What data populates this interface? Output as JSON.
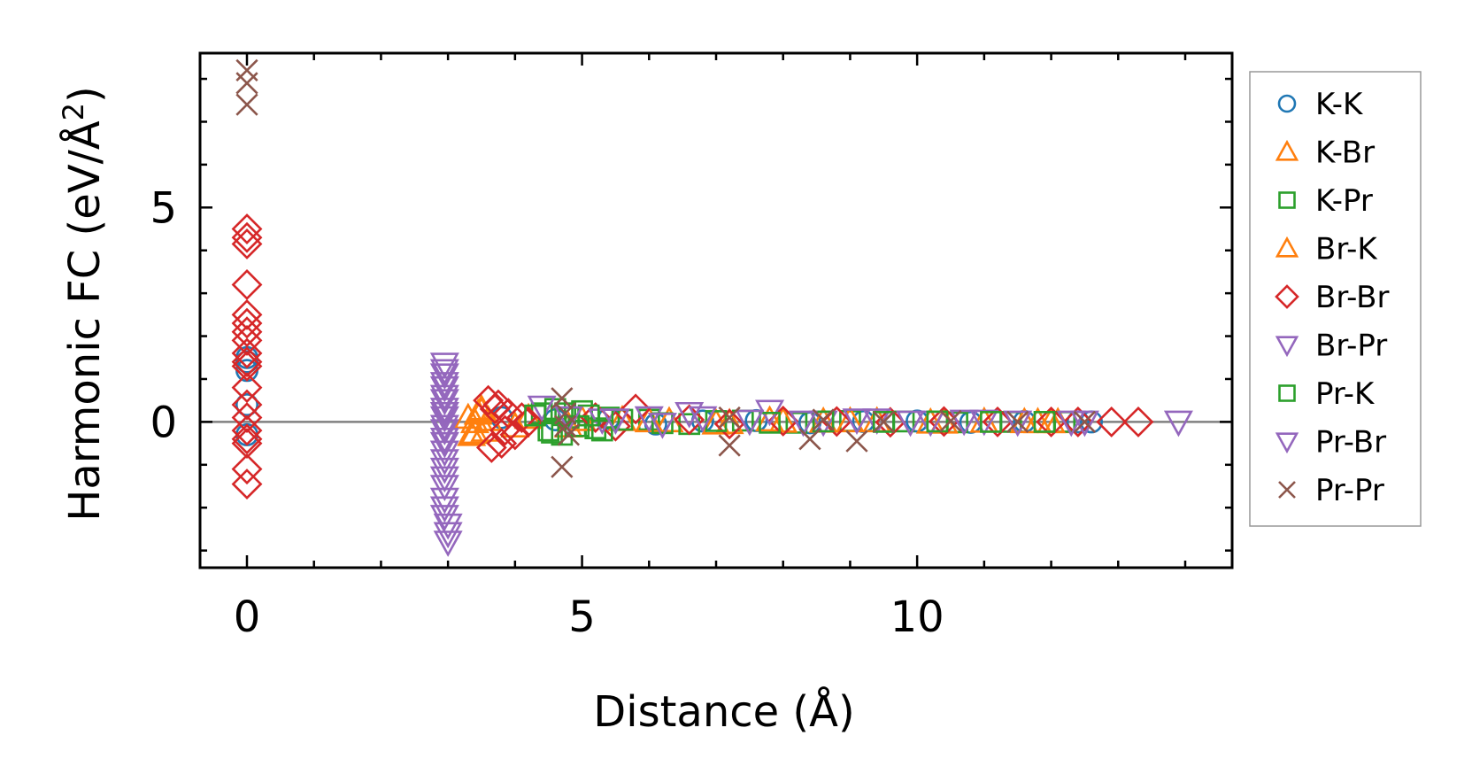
{
  "chart_data": {
    "type": "scatter",
    "xlabel": "Distance (Å)",
    "ylabel_main": "Harmonic FC (eV/Å",
    "ylabel_sup": "2",
    "ylabel_close": ")",
    "xlim": [
      -0.7,
      14.7
    ],
    "ylim": [
      -3.4,
      8.6
    ],
    "xticks": [
      0,
      5,
      10
    ],
    "xtick_labels": [
      "0",
      "5",
      "10"
    ],
    "yticks": [
      0,
      5
    ],
    "ytick_labels": [
      "0",
      "5"
    ],
    "reference_line_y": 0,
    "grid": false,
    "legend_position": "right-outside",
    "series": [
      {
        "name": "K-K",
        "marker": "circle",
        "color": "#1f77b4",
        "x": [
          0,
          0,
          0,
          0,
          0,
          3.8,
          4.6,
          5.4,
          6.1,
          6.8,
          7.6,
          8.4,
          9.2,
          10.0,
          10.8,
          11.6,
          12.4,
          12.6
        ],
        "y": [
          1.2,
          1.4,
          1.5,
          0.4,
          -0.3,
          0.1,
          0.05,
          0.08,
          -0.05,
          0.02,
          0.03,
          -0.02,
          0.01,
          0.02,
          -0.01,
          0.01,
          0.0,
          0.0
        ]
      },
      {
        "name": "K-Br",
        "marker": "triangle-up",
        "color": "#ff7f0e",
        "x": [
          3.35,
          3.4,
          3.45,
          3.5,
          3.55,
          4.2,
          4.8,
          5.6,
          6.3,
          7.0,
          7.8,
          8.6,
          9.4,
          10.2,
          11.0,
          11.8,
          12.1
        ],
        "y": [
          -0.3,
          0.0,
          0.2,
          0.3,
          -0.2,
          0.1,
          -0.1,
          0.05,
          0.02,
          -0.03,
          0.04,
          0.01,
          0.02,
          -0.01,
          0.01,
          0.0,
          0.0
        ]
      },
      {
        "name": "K-Pr",
        "marker": "square",
        "color": "#2ca02c",
        "x": [
          4.4,
          4.5,
          4.6,
          4.7,
          4.8,
          4.9,
          5.0,
          5.2,
          5.4,
          6.0,
          6.6,
          7.4,
          8.2,
          9.0,
          9.8,
          10.6,
          11.4,
          12.2
        ],
        "y": [
          0.2,
          -0.2,
          0.3,
          -0.3,
          0.1,
          -0.1,
          0.25,
          -0.15,
          0.1,
          0.05,
          -0.05,
          0.03,
          -0.02,
          0.02,
          0.01,
          -0.01,
          0.0,
          0.0
        ]
      },
      {
        "name": "Br-K",
        "marker": "triangle-up",
        "color": "#ff7f0e",
        "x": [
          3.3,
          3.4,
          3.5,
          3.6,
          4.0,
          5.0,
          6.0,
          7.2,
          8.0,
          9.0,
          10.4,
          11.6,
          12.0
        ],
        "y": [
          0.1,
          -0.25,
          0.25,
          0.05,
          -0.1,
          0.05,
          0.02,
          -0.02,
          0.01,
          0.02,
          -0.01,
          0.0,
          0.0
        ]
      },
      {
        "name": "Br-Br",
        "marker": "diamond",
        "color": "#d62728",
        "x": [
          0,
          0,
          0,
          0,
          0,
          0,
          0,
          0,
          0,
          0,
          0,
          0,
          0,
          0,
          0,
          0,
          0,
          0,
          0,
          3.6,
          3.7,
          3.8,
          3.9,
          4.0,
          4.1,
          4.2,
          3.65,
          3.75,
          3.85,
          5.2,
          5.5,
          5.8,
          6.6,
          7.2,
          8.0,
          8.8,
          9.6,
          10.4,
          11.2,
          12.0,
          12.4,
          12.9,
          13.3
        ],
        "y": [
          4.5,
          4.3,
          4.15,
          3.2,
          2.5,
          2.3,
          2.1,
          1.9,
          1.6,
          1.4,
          1.3,
          0.8,
          0.4,
          0.1,
          -0.2,
          -0.4,
          -0.5,
          -1.1,
          -1.45,
          0.5,
          0.3,
          -0.5,
          0.2,
          -0.3,
          0.1,
          0.0,
          -0.6,
          0.4,
          -0.2,
          0.1,
          -0.1,
          0.3,
          0.05,
          -0.05,
          0.02,
          0.01,
          -0.01,
          0.01,
          0.0,
          0.0,
          0.0,
          0.0,
          0.0
        ]
      },
      {
        "name": "Br-Pr",
        "marker": "triangle-down",
        "color": "#9467bd",
        "x": [
          2.95,
          2.95,
          2.95,
          2.95,
          2.95,
          2.95,
          2.95,
          2.95,
          2.95,
          2.95,
          2.95,
          2.95,
          3.0,
          3.0,
          4.4,
          5.3,
          6.0,
          6.6,
          7.8,
          8.6,
          9.4,
          10.2,
          11.0,
          12.5,
          13.9
        ],
        "y": [
          1.35,
          1.1,
          0.8,
          0.6,
          0.3,
          0.1,
          -0.2,
          -0.5,
          -0.9,
          -1.3,
          -1.8,
          -2.2,
          -2.6,
          -2.8,
          0.35,
          0.05,
          0.1,
          0.2,
          0.25,
          0.0,
          0.05,
          0.0,
          0.02,
          0.0,
          0.0
        ]
      },
      {
        "name": "Pr-K",
        "marker": "square",
        "color": "#2ca02c",
        "x": [
          4.3,
          4.55,
          4.75,
          4.95,
          5.1,
          5.3,
          5.6,
          6.2,
          7.0,
          7.8,
          8.6,
          9.5,
          10.3,
          11.1,
          11.9
        ],
        "y": [
          0.15,
          -0.25,
          0.2,
          -0.1,
          0.15,
          -0.2,
          0.05,
          -0.03,
          0.02,
          -0.02,
          0.01,
          0.0,
          0.01,
          0.0,
          0.0
        ]
      },
      {
        "name": "Pr-Br",
        "marker": "triangle-down",
        "color": "#9467bd",
        "x": [
          2.95,
          2.95,
          2.95,
          2.95,
          2.95,
          2.95,
          2.95,
          2.95,
          2.95,
          2.95,
          3.0,
          4.8,
          5.5,
          6.2,
          6.8,
          7.5,
          8.3,
          9.1,
          9.9,
          10.7,
          11.5,
          12.3
        ],
        "y": [
          1.2,
          0.9,
          0.5,
          0.2,
          -0.1,
          -0.4,
          -0.7,
          -1.1,
          -1.5,
          -2.0,
          -2.4,
          0.1,
          0.05,
          -0.05,
          0.1,
          0.02,
          0.0,
          0.05,
          0.0,
          0.02,
          0.0,
          0.0
        ]
      },
      {
        "name": "Pr-Pr",
        "marker": "x",
        "color": "#8c564b",
        "x": [
          0,
          0,
          0,
          4.7,
          4.75,
          4.75,
          4.8,
          4.7,
          7.2,
          7.2,
          8.4,
          8.6,
          9.1,
          9.5,
          10.5,
          11.5,
          12.5
        ],
        "y": [
          8.2,
          7.9,
          7.4,
          0.55,
          0.2,
          -0.1,
          -0.3,
          -1.05,
          0.1,
          -0.55,
          -0.4,
          0.05,
          -0.45,
          0.0,
          0.02,
          0.0,
          0.0
        ]
      }
    ]
  }
}
